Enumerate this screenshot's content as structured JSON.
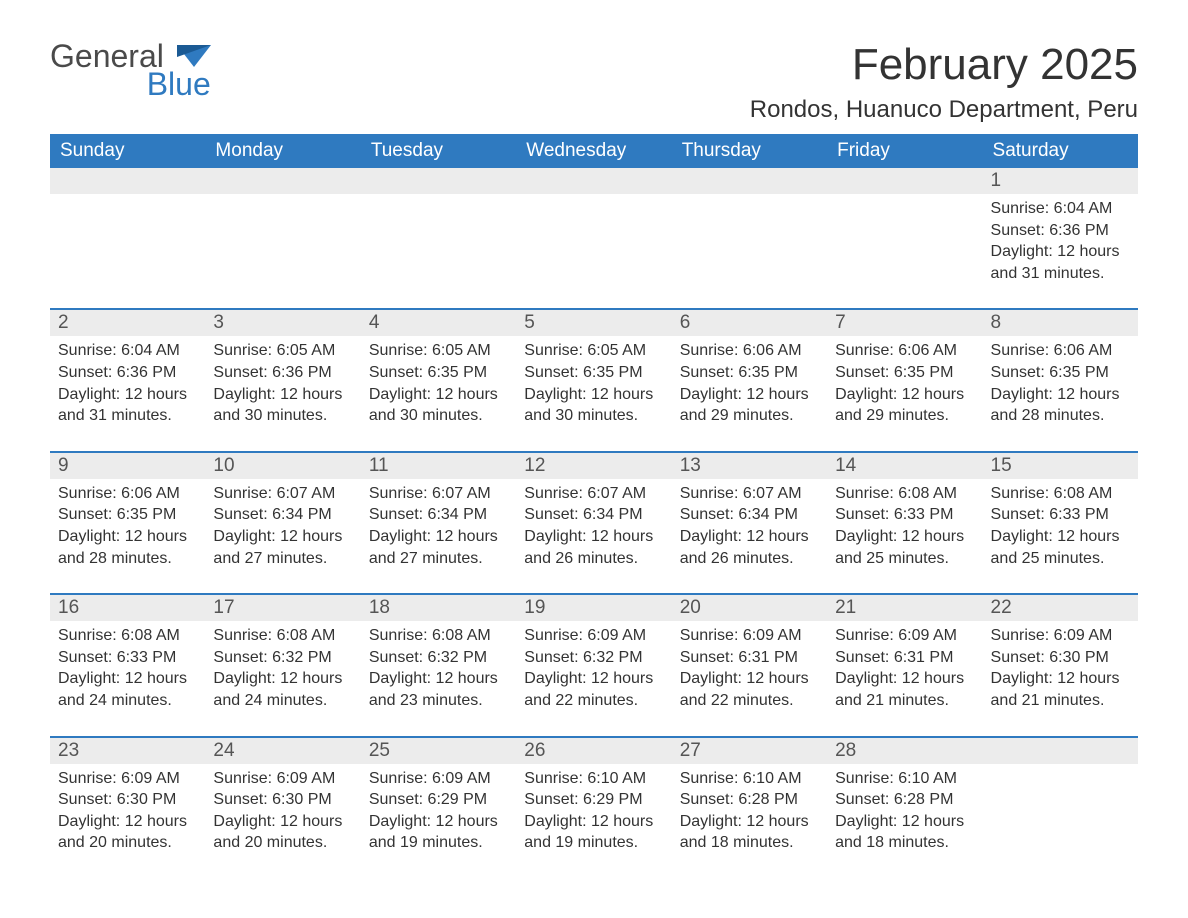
{
  "logo": {
    "word1": "General",
    "word2": "Blue"
  },
  "title": "February 2025",
  "location": "Rondos, Huanuco Department, Peru",
  "colors": {
    "header_bg": "#2f7ac0",
    "header_text": "#ffffff",
    "daynum_bg": "#ececec",
    "row_divider": "#2f7ac0",
    "body_text": "#333333",
    "logo_gray": "#4a4a4a",
    "logo_blue": "#2f7ac0",
    "page_bg": "#ffffff"
  },
  "typography": {
    "title_fontsize": 44,
    "location_fontsize": 24,
    "weekday_fontsize": 19,
    "daynum_fontsize": 19,
    "detail_fontsize": 16,
    "font_family": "Arial"
  },
  "weekdays": [
    "Sunday",
    "Monday",
    "Tuesday",
    "Wednesday",
    "Thursday",
    "Friday",
    "Saturday"
  ],
  "weeks": [
    [
      null,
      null,
      null,
      null,
      null,
      null,
      {
        "n": "1",
        "sr": "Sunrise: 6:04 AM",
        "ss": "Sunset: 6:36 PM",
        "dl": "Daylight: 12 hours and 31 minutes."
      }
    ],
    [
      {
        "n": "2",
        "sr": "Sunrise: 6:04 AM",
        "ss": "Sunset: 6:36 PM",
        "dl": "Daylight: 12 hours and 31 minutes."
      },
      {
        "n": "3",
        "sr": "Sunrise: 6:05 AM",
        "ss": "Sunset: 6:36 PM",
        "dl": "Daylight: 12 hours and 30 minutes."
      },
      {
        "n": "4",
        "sr": "Sunrise: 6:05 AM",
        "ss": "Sunset: 6:35 PM",
        "dl": "Daylight: 12 hours and 30 minutes."
      },
      {
        "n": "5",
        "sr": "Sunrise: 6:05 AM",
        "ss": "Sunset: 6:35 PM",
        "dl": "Daylight: 12 hours and 30 minutes."
      },
      {
        "n": "6",
        "sr": "Sunrise: 6:06 AM",
        "ss": "Sunset: 6:35 PM",
        "dl": "Daylight: 12 hours and 29 minutes."
      },
      {
        "n": "7",
        "sr": "Sunrise: 6:06 AM",
        "ss": "Sunset: 6:35 PM",
        "dl": "Daylight: 12 hours and 29 minutes."
      },
      {
        "n": "8",
        "sr": "Sunrise: 6:06 AM",
        "ss": "Sunset: 6:35 PM",
        "dl": "Daylight: 12 hours and 28 minutes."
      }
    ],
    [
      {
        "n": "9",
        "sr": "Sunrise: 6:06 AM",
        "ss": "Sunset: 6:35 PM",
        "dl": "Daylight: 12 hours and 28 minutes."
      },
      {
        "n": "10",
        "sr": "Sunrise: 6:07 AM",
        "ss": "Sunset: 6:34 PM",
        "dl": "Daylight: 12 hours and 27 minutes."
      },
      {
        "n": "11",
        "sr": "Sunrise: 6:07 AM",
        "ss": "Sunset: 6:34 PM",
        "dl": "Daylight: 12 hours and 27 minutes."
      },
      {
        "n": "12",
        "sr": "Sunrise: 6:07 AM",
        "ss": "Sunset: 6:34 PM",
        "dl": "Daylight: 12 hours and 26 minutes."
      },
      {
        "n": "13",
        "sr": "Sunrise: 6:07 AM",
        "ss": "Sunset: 6:34 PM",
        "dl": "Daylight: 12 hours and 26 minutes."
      },
      {
        "n": "14",
        "sr": "Sunrise: 6:08 AM",
        "ss": "Sunset: 6:33 PM",
        "dl": "Daylight: 12 hours and 25 minutes."
      },
      {
        "n": "15",
        "sr": "Sunrise: 6:08 AM",
        "ss": "Sunset: 6:33 PM",
        "dl": "Daylight: 12 hours and 25 minutes."
      }
    ],
    [
      {
        "n": "16",
        "sr": "Sunrise: 6:08 AM",
        "ss": "Sunset: 6:33 PM",
        "dl": "Daylight: 12 hours and 24 minutes."
      },
      {
        "n": "17",
        "sr": "Sunrise: 6:08 AM",
        "ss": "Sunset: 6:32 PM",
        "dl": "Daylight: 12 hours and 24 minutes."
      },
      {
        "n": "18",
        "sr": "Sunrise: 6:08 AM",
        "ss": "Sunset: 6:32 PM",
        "dl": "Daylight: 12 hours and 23 minutes."
      },
      {
        "n": "19",
        "sr": "Sunrise: 6:09 AM",
        "ss": "Sunset: 6:32 PM",
        "dl": "Daylight: 12 hours and 22 minutes."
      },
      {
        "n": "20",
        "sr": "Sunrise: 6:09 AM",
        "ss": "Sunset: 6:31 PM",
        "dl": "Daylight: 12 hours and 22 minutes."
      },
      {
        "n": "21",
        "sr": "Sunrise: 6:09 AM",
        "ss": "Sunset: 6:31 PM",
        "dl": "Daylight: 12 hours and 21 minutes."
      },
      {
        "n": "22",
        "sr": "Sunrise: 6:09 AM",
        "ss": "Sunset: 6:30 PM",
        "dl": "Daylight: 12 hours and 21 minutes."
      }
    ],
    [
      {
        "n": "23",
        "sr": "Sunrise: 6:09 AM",
        "ss": "Sunset: 6:30 PM",
        "dl": "Daylight: 12 hours and 20 minutes."
      },
      {
        "n": "24",
        "sr": "Sunrise: 6:09 AM",
        "ss": "Sunset: 6:30 PM",
        "dl": "Daylight: 12 hours and 20 minutes."
      },
      {
        "n": "25",
        "sr": "Sunrise: 6:09 AM",
        "ss": "Sunset: 6:29 PM",
        "dl": "Daylight: 12 hours and 19 minutes."
      },
      {
        "n": "26",
        "sr": "Sunrise: 6:10 AM",
        "ss": "Sunset: 6:29 PM",
        "dl": "Daylight: 12 hours and 19 minutes."
      },
      {
        "n": "27",
        "sr": "Sunrise: 6:10 AM",
        "ss": "Sunset: 6:28 PM",
        "dl": "Daylight: 12 hours and 18 minutes."
      },
      {
        "n": "28",
        "sr": "Sunrise: 6:10 AM",
        "ss": "Sunset: 6:28 PM",
        "dl": "Daylight: 12 hours and 18 minutes."
      },
      null
    ]
  ]
}
